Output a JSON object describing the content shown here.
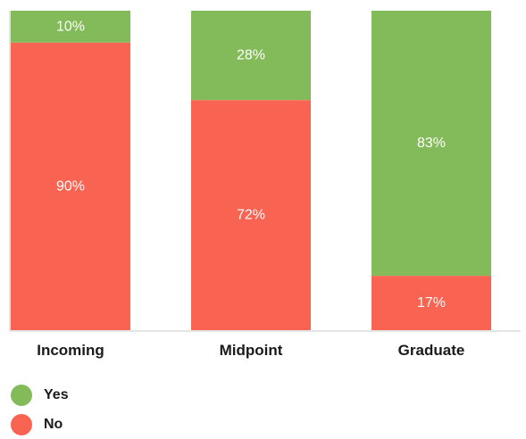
{
  "chart_data": {
    "type": "bar",
    "stacked": true,
    "percent": true,
    "categories": [
      "Incoming",
      "Midpoint",
      "Graduate"
    ],
    "series": [
      {
        "name": "Yes",
        "color": "#84bb5a",
        "values": [
          10,
          28,
          83
        ],
        "labels": [
          "10%",
          "28%",
          "83%"
        ]
      },
      {
        "name": "No",
        "color": "#f96352",
        "values": [
          90,
          72,
          17
        ],
        "labels": [
          "90%",
          "72%",
          "17%"
        ]
      }
    ],
    "ylim": [
      0,
      100
    ],
    "grid": false,
    "legend": "bottom-left"
  }
}
